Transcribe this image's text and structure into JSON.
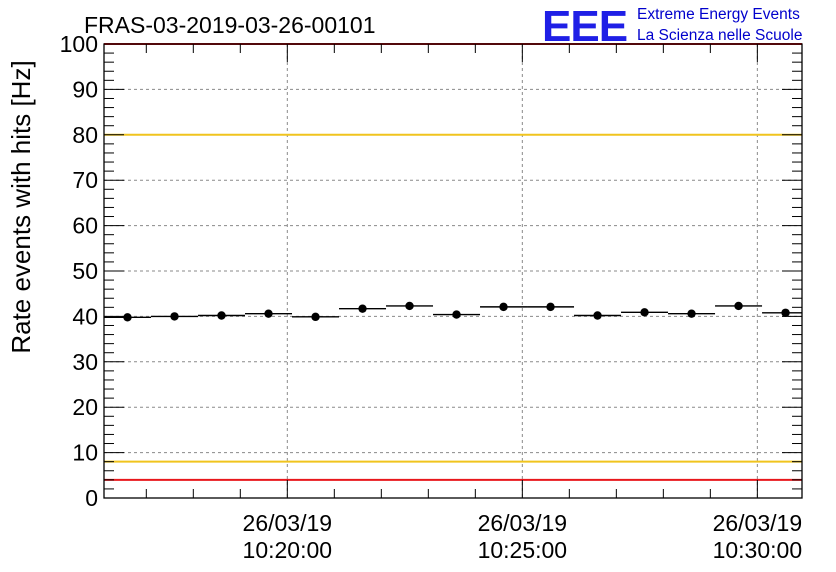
{
  "chart_data": {
    "type": "scatter",
    "title": "FRAS-03-2019-03-26-00101",
    "xlabel": "",
    "ylabel": "Rate events with hits [Hz]",
    "ylim": [
      0,
      100
    ],
    "xlim_minutes": [
      16.1,
      30.95
    ],
    "yticks": [
      0,
      10,
      20,
      30,
      40,
      50,
      60,
      70,
      80,
      90,
      100
    ],
    "xticks": [
      {
        "minute": 20,
        "date": "26/03/19",
        "time": "10:20:00"
      },
      {
        "minute": 25,
        "date": "26/03/19",
        "time": "10:25:00"
      },
      {
        "minute": 30,
        "date": "26/03/19",
        "time": "10:30:00"
      }
    ],
    "grid": true,
    "series": [
      {
        "name": "rate",
        "bin_width_minutes": 1.0,
        "x_minutes": [
          16.6,
          17.6,
          18.6,
          19.6,
          20.6,
          21.6,
          22.6,
          23.6,
          24.6,
          25.6,
          26.6,
          27.6,
          28.6,
          29.6,
          30.6
        ],
        "values": [
          39.8,
          40.0,
          40.2,
          40.6,
          39.9,
          41.7,
          42.3,
          40.4,
          42.1,
          42.1,
          40.2,
          40.9,
          40.6,
          42.3,
          40.8
        ]
      }
    ],
    "reference_lines": [
      {
        "value": 100,
        "color": "#e8171c"
      },
      {
        "value": 80,
        "color": "#f0c41e"
      },
      {
        "value": 8,
        "color": "#f0c41e"
      },
      {
        "value": 4,
        "color": "#e8171c"
      }
    ]
  },
  "logo": {
    "text": "EEE",
    "line1": "Extreme Energy Events",
    "line2": "La Scienza nelle Scuole"
  }
}
